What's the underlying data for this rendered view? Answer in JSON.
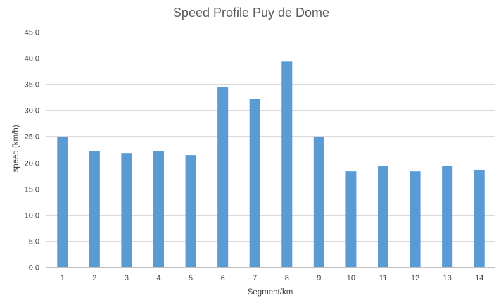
{
  "chart_data": {
    "type": "bar",
    "title": "Speed Profile Puy de Dome",
    "xlabel": "Segment/km",
    "ylabel": "speed (km/h)",
    "categories": [
      "1",
      "2",
      "3",
      "4",
      "5",
      "6",
      "7",
      "8",
      "9",
      "10",
      "11",
      "12",
      "13",
      "14"
    ],
    "values": [
      24.8,
      22.1,
      21.8,
      22.1,
      21.4,
      34.4,
      32.1,
      39.3,
      24.8,
      18.3,
      19.4,
      18.3,
      19.3,
      18.6
    ],
    "ylim": [
      0,
      45
    ],
    "yticks": [
      "0,0",
      "5,0",
      "10,0",
      "15,0",
      "20,0",
      "25,0",
      "30,0",
      "35,0",
      "40,0",
      "45,0"
    ],
    "grid": true,
    "bar_color": "#5b9bd5"
  }
}
